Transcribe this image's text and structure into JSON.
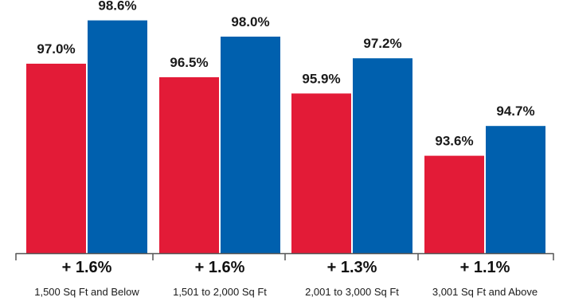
{
  "colors": {
    "series_a": "#E31B37",
    "series_b": "#0060AE",
    "axis": "#555555"
  },
  "chart_data": {
    "type": "bar",
    "categories": [
      "1,500 Sq Ft and Below",
      "1,501 to 2,000 Sq Ft",
      "2,001 to 3,000 Sq Ft",
      "3,001 Sq Ft and Above"
    ],
    "series": [
      {
        "values": [
          97.0,
          96.5,
          95.9,
          93.6
        ],
        "labels": [
          "97.0%",
          "96.5%",
          "95.9%",
          "93.6%"
        ]
      },
      {
        "values": [
          98.6,
          98.0,
          97.2,
          94.7
        ],
        "labels": [
          "98.6%",
          "98.0%",
          "97.2%",
          "94.7%"
        ]
      }
    ],
    "differences": [
      "+ 1.6%",
      "+ 1.6%",
      "+ 1.3%",
      "+ 1.1%"
    ],
    "ylim": [
      90,
      99
    ]
  }
}
